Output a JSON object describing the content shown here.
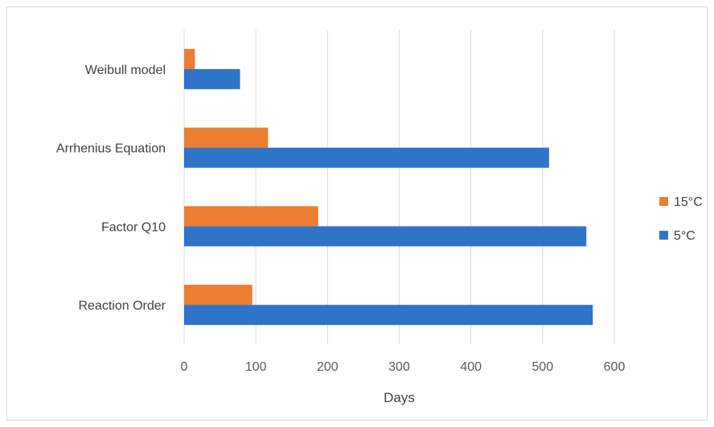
{
  "chart_data": {
    "type": "bar",
    "orientation": "horizontal",
    "categories": [
      "Reaction Order",
      "Factor Q10",
      "Arrhenius Equation",
      "Weibull model"
    ],
    "series": [
      {
        "name": "15°C",
        "color": "#ED7D31",
        "values": [
          95,
          187,
          117,
          15
        ]
      },
      {
        "name": "5°C",
        "color": "#2E75C9",
        "values": [
          570,
          561,
          509,
          78
        ]
      }
    ],
    "xlabel": "Days",
    "ylabel": "",
    "title": "",
    "xlim": [
      0,
      600
    ],
    "xticks": [
      0,
      100,
      200,
      300,
      400,
      500,
      600
    ],
    "grid": true,
    "legend_position": "right"
  }
}
